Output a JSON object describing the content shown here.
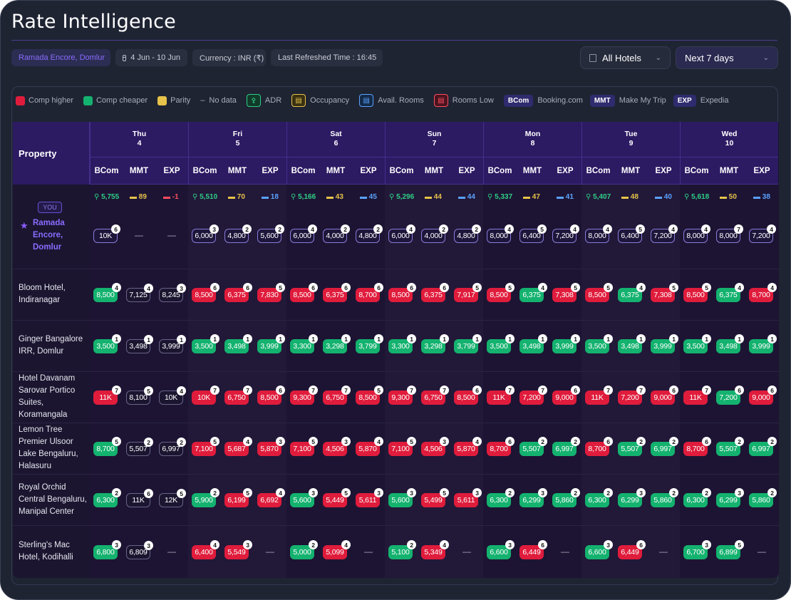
{
  "app_title": "Rate Intelligence",
  "toolbar": {
    "hotel_chip": "Ramada Encore, Domlur",
    "date_range": "4 Jun - 10 Jun",
    "currency": "Currency : INR (₹)",
    "refreshed": "Last Refreshed Time : 16:45",
    "hotels_dropdown": "All Hotels",
    "days_dropdown": "Next 7 days"
  },
  "legend": {
    "comp_higher": "Comp higher",
    "comp_cheaper": "Comp cheaper",
    "parity": "Parity",
    "no_data": "No data",
    "adr": "ADR",
    "occupancy": "Occupancy",
    "avail_rooms": "Avail. Rooms",
    "rooms_low": "Rooms Low",
    "bcom_tag": "BCom",
    "bcom_name": "Booking.com",
    "mmt_tag": "MMT",
    "mmt_name": "Make My Trip",
    "exp_tag": "EXP",
    "exp_name": "Expedia",
    "colors": {
      "higher": "#e01c3c",
      "cheaper": "#14b26f",
      "parity": "#e6c34a"
    }
  },
  "table": {
    "property_header": "Property",
    "you_badge": "YOU",
    "channels": [
      "BCom",
      "MMT",
      "EXP"
    ],
    "no_data_symbol": "—",
    "days": [
      {
        "dow": "Thu",
        "date": "4"
      },
      {
        "dow": "Fri",
        "date": "5"
      },
      {
        "dow": "Sat",
        "date": "6"
      },
      {
        "dow": "Sun",
        "date": "7"
      },
      {
        "dow": "Mon",
        "date": "8"
      },
      {
        "dow": "Tue",
        "date": "9"
      },
      {
        "dow": "Wed",
        "date": "10"
      }
    ],
    "own_kpis": [
      {
        "adr": "5,755",
        "occ": "89",
        "rooms": "-1",
        "rooms_type": "low"
      },
      {
        "adr": "5,510",
        "occ": "70",
        "rooms": "18",
        "rooms_type": "avail"
      },
      {
        "adr": "5,166",
        "occ": "43",
        "rooms": "45",
        "rooms_type": "avail"
      },
      {
        "adr": "5,296",
        "occ": "44",
        "rooms": "44",
        "rooms_type": "avail"
      },
      {
        "adr": "5,337",
        "occ": "47",
        "rooms": "41",
        "rooms_type": "avail"
      },
      {
        "adr": "5,407",
        "occ": "48",
        "rooms": "40",
        "rooms_type": "avail"
      },
      {
        "adr": "5,618",
        "occ": "50",
        "rooms": "38",
        "rooms_type": "avail"
      }
    ],
    "rows": [
      {
        "name": "Ramada Encore, Domlur",
        "own": true,
        "cells": [
          [
            "10K",
            "own",
            "6"
          ],
          [
            "",
            "none",
            ""
          ],
          [
            "",
            "none",
            ""
          ],
          [
            "6,000",
            "own",
            "3"
          ],
          [
            "4,800",
            "own",
            "2"
          ],
          [
            "5,600",
            "own",
            "2"
          ],
          [
            "6,000",
            "own",
            "4"
          ],
          [
            "4,000",
            "own",
            "2"
          ],
          [
            "4,800",
            "own",
            "2"
          ],
          [
            "6,000",
            "own",
            "4"
          ],
          [
            "4,000",
            "own",
            "2"
          ],
          [
            "4,800",
            "own",
            "2"
          ],
          [
            "8,000",
            "own",
            "4"
          ],
          [
            "6,400",
            "own",
            "5"
          ],
          [
            "7,200",
            "own",
            "4"
          ],
          [
            "8,000",
            "own",
            "4"
          ],
          [
            "6,400",
            "own",
            "5"
          ],
          [
            "7,200",
            "own",
            "4"
          ],
          [
            "8,000",
            "own",
            "4"
          ],
          [
            "8,000",
            "own",
            "7"
          ],
          [
            "7,200",
            "own",
            "4"
          ]
        ]
      },
      {
        "name": "Bloom Hotel, Indiranagar",
        "cells": [
          [
            "8,500",
            "green",
            "4"
          ],
          [
            "7,125",
            "none",
            "4"
          ],
          [
            "8,245",
            "none",
            "3"
          ],
          [
            "8,500",
            "red",
            "6"
          ],
          [
            "6,375",
            "red",
            "6"
          ],
          [
            "7,830",
            "red",
            "5"
          ],
          [
            "8,500",
            "red",
            "6"
          ],
          [
            "6,375",
            "red",
            "6"
          ],
          [
            "8,700",
            "red",
            "6"
          ],
          [
            "8,500",
            "red",
            "6"
          ],
          [
            "6,375",
            "red",
            "6"
          ],
          [
            "7,917",
            "red",
            "5"
          ],
          [
            "8,500",
            "red",
            "5"
          ],
          [
            "6,375",
            "green",
            "4"
          ],
          [
            "7,308",
            "red",
            "5"
          ],
          [
            "8,500",
            "red",
            "5"
          ],
          [
            "6,375",
            "green",
            "4"
          ],
          [
            "7,308",
            "red",
            "5"
          ],
          [
            "8,500",
            "red",
            "5"
          ],
          [
            "6,375",
            "green",
            "4"
          ],
          [
            "8,700",
            "red",
            "4"
          ]
        ]
      },
      {
        "name": "Ginger Bangalore IRR, Domlur",
        "cells": [
          [
            "3,500",
            "green",
            "1"
          ],
          [
            "3,498",
            "none",
            "1"
          ],
          [
            "3,999",
            "none",
            "1"
          ],
          [
            "3,500",
            "green",
            "1"
          ],
          [
            "3,498",
            "green",
            "1"
          ],
          [
            "3,999",
            "green",
            "1"
          ],
          [
            "3,300",
            "green",
            "1"
          ],
          [
            "3,298",
            "green",
            "1"
          ],
          [
            "3,799",
            "green",
            "1"
          ],
          [
            "3,300",
            "green",
            "1"
          ],
          [
            "3,298",
            "green",
            "1"
          ],
          [
            "3,799",
            "green",
            "1"
          ],
          [
            "3,500",
            "green",
            "1"
          ],
          [
            "3,498",
            "green",
            "1"
          ],
          [
            "3,999",
            "green",
            "1"
          ],
          [
            "3,500",
            "green",
            "1"
          ],
          [
            "3,498",
            "green",
            "1"
          ],
          [
            "3,999",
            "green",
            "1"
          ],
          [
            "3,500",
            "green",
            "1"
          ],
          [
            "3,498",
            "green",
            "1"
          ],
          [
            "3,999",
            "green",
            "1"
          ]
        ]
      },
      {
        "name": "Hotel Davanam Sarovar Portico Suites, Koramangala",
        "cells": [
          [
            "11K",
            "red",
            "7"
          ],
          [
            "8,100",
            "none",
            "5"
          ],
          [
            "10K",
            "none",
            "4"
          ],
          [
            "10K",
            "red",
            "7"
          ],
          [
            "6,750",
            "red",
            "7"
          ],
          [
            "8,500",
            "red",
            "6"
          ],
          [
            "9,300",
            "red",
            "7"
          ],
          [
            "6,750",
            "red",
            "7"
          ],
          [
            "8,500",
            "red",
            "5"
          ],
          [
            "9,300",
            "red",
            "7"
          ],
          [
            "6,750",
            "red",
            "7"
          ],
          [
            "8,500",
            "red",
            "6"
          ],
          [
            "11K",
            "red",
            "7"
          ],
          [
            "7,200",
            "red",
            "7"
          ],
          [
            "9,000",
            "red",
            "6"
          ],
          [
            "11K",
            "red",
            "7"
          ],
          [
            "7,200",
            "red",
            "7"
          ],
          [
            "9,000",
            "red",
            "6"
          ],
          [
            "11K",
            "red",
            "7"
          ],
          [
            "7,200",
            "green",
            "6"
          ],
          [
            "9,000",
            "red",
            "6"
          ]
        ]
      },
      {
        "name": "Lemon Tree Premier Ulsoor Lake Bengaluru, Halasuru",
        "cells": [
          [
            "8,700",
            "green",
            "5"
          ],
          [
            "5,507",
            "none",
            "2"
          ],
          [
            "6,997",
            "none",
            "2"
          ],
          [
            "7,100",
            "red",
            "5"
          ],
          [
            "5,687",
            "red",
            "4"
          ],
          [
            "5,870",
            "red",
            "3"
          ],
          [
            "7,100",
            "red",
            "5"
          ],
          [
            "4,506",
            "red",
            "3"
          ],
          [
            "5,870",
            "red",
            "4"
          ],
          [
            "7,100",
            "red",
            "5"
          ],
          [
            "4,506",
            "red",
            "3"
          ],
          [
            "5,870",
            "red",
            "4"
          ],
          [
            "8,700",
            "red",
            "6"
          ],
          [
            "5,507",
            "green",
            "2"
          ],
          [
            "6,997",
            "green",
            "2"
          ],
          [
            "8,700",
            "red",
            "6"
          ],
          [
            "5,507",
            "green",
            "2"
          ],
          [
            "6,997",
            "green",
            "2"
          ],
          [
            "8,700",
            "red",
            "6"
          ],
          [
            "5,507",
            "green",
            "2"
          ],
          [
            "6,997",
            "green",
            "2"
          ]
        ]
      },
      {
        "name": "Royal Orchid Central Bengaluru, Manipal Center",
        "cells": [
          [
            "6,300",
            "green",
            "2"
          ],
          [
            "11K",
            "none",
            "6"
          ],
          [
            "12K",
            "none",
            "5"
          ],
          [
            "5,900",
            "green",
            "2"
          ],
          [
            "6,199",
            "red",
            "5"
          ],
          [
            "6,692",
            "red",
            "4"
          ],
          [
            "5,600",
            "green",
            "3"
          ],
          [
            "5,449",
            "red",
            "5"
          ],
          [
            "5,611",
            "red",
            "3"
          ],
          [
            "5,600",
            "green",
            "3"
          ],
          [
            "5,499",
            "red",
            "5"
          ],
          [
            "5,611",
            "red",
            "3"
          ],
          [
            "6,300",
            "green",
            "2"
          ],
          [
            "6,299",
            "green",
            "3"
          ],
          [
            "5,860",
            "green",
            "2"
          ],
          [
            "6,300",
            "green",
            "2"
          ],
          [
            "6,299",
            "green",
            "3"
          ],
          [
            "5,860",
            "green",
            "2"
          ],
          [
            "6,300",
            "green",
            "2"
          ],
          [
            "6,299",
            "green",
            "3"
          ],
          [
            "5,860",
            "green",
            "2"
          ]
        ]
      },
      {
        "name": "Sterling's Mac Hotel, Kodihalli",
        "cells": [
          [
            "6,800",
            "green",
            "3"
          ],
          [
            "6,809",
            "none",
            "3"
          ],
          [
            "",
            "dash",
            ""
          ],
          [
            "6,400",
            "red",
            "4"
          ],
          [
            "5,549",
            "red",
            "3"
          ],
          [
            "",
            "dash",
            ""
          ],
          [
            "5,000",
            "green",
            "2"
          ],
          [
            "5,099",
            "red",
            "4"
          ],
          [
            "",
            "dash",
            ""
          ],
          [
            "5,100",
            "green",
            "2"
          ],
          [
            "5,349",
            "red",
            "4"
          ],
          [
            "",
            "dash",
            ""
          ],
          [
            "6,600",
            "green",
            "3"
          ],
          [
            "6,449",
            "red",
            "6"
          ],
          [
            "",
            "dash",
            ""
          ],
          [
            "6,600",
            "green",
            "3"
          ],
          [
            "6,449",
            "red",
            "6"
          ],
          [
            "",
            "dash",
            ""
          ],
          [
            "6,700",
            "green",
            "3"
          ],
          [
            "6,899",
            "green",
            "5"
          ],
          [
            "",
            "dash",
            ""
          ]
        ]
      }
    ]
  }
}
